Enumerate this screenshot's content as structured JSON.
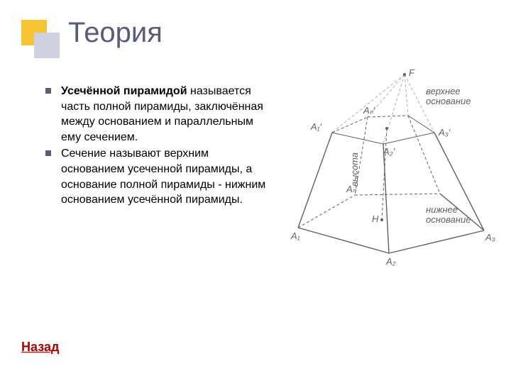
{
  "title": "Теория",
  "bullets": [
    {
      "strong": "Усечённой пирамидой",
      "rest": " называется часть полной пирамиды, заключённая между основанием и параллельным ему сечением."
    },
    {
      "strong": "",
      "rest": "Сечение называют верхним основанием усеченной пирамиды, а основание полной пирамиды  - нижним основанием усечённой пирамиды."
    }
  ],
  "back_label": "Назад",
  "decoration": {
    "back_color": "#f7c433",
    "front_color": "#d0d0e0"
  },
  "bullet_color": "#5a5a7a",
  "diagram": {
    "stroke": "#606060",
    "stroke_light": "#b0b0b0",
    "text_color": "#606060",
    "label_italic_color": "#707070",
    "labels": {
      "F": "F",
      "top_base": "верхнее основание",
      "bottom_base": "нижнее основание",
      "height": "высота",
      "A1p": "A₁′",
      "Anp": "Aₙ′",
      "A2p": "A₂′",
      "A3p": "A₃′",
      "H": "H",
      "A1": "A₁",
      "An": "Aₙ",
      "A2": "A₂",
      "A3": "A₃"
    }
  }
}
